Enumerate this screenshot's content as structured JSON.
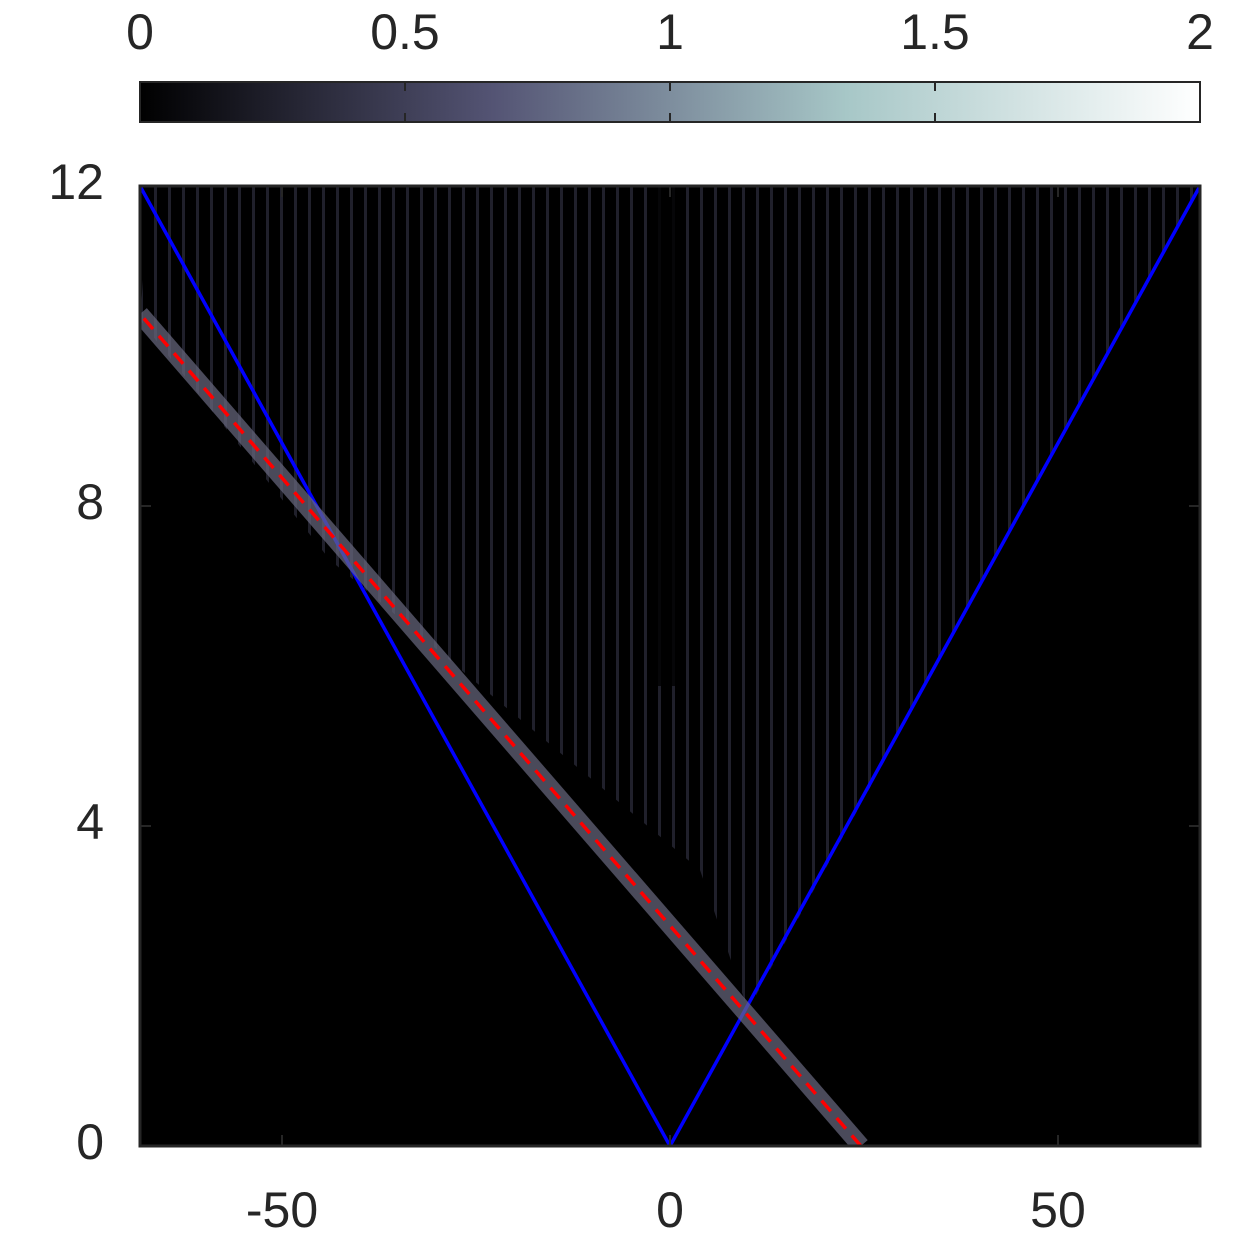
{
  "chart_data": {
    "type": "heatmap",
    "xlim": [
      -68.3,
      68.3
    ],
    "ylim": [
      0,
      12
    ],
    "xticks": [
      -50,
      0,
      50
    ],
    "yticks": [
      0,
      4,
      8,
      12
    ],
    "colorbar": {
      "clim": [
        0,
        2
      ],
      "ticks": [
        0,
        0.5,
        1,
        1.5,
        2
      ],
      "colormap": [
        "#000000",
        "#545474",
        "#a7c7c7",
        "#ffffff"
      ]
    },
    "series": [
      {
        "color": "#0000ff",
        "x": [
          -68.3,
          0,
          68.3
        ],
        "y": [
          12,
          0,
          12
        ]
      },
      {
        "color": "#ff0000",
        "dashed": true,
        "x": [
          24.6,
          -68.3
        ],
        "y": [
          0,
          10.4
        ]
      }
    ]
  }
}
